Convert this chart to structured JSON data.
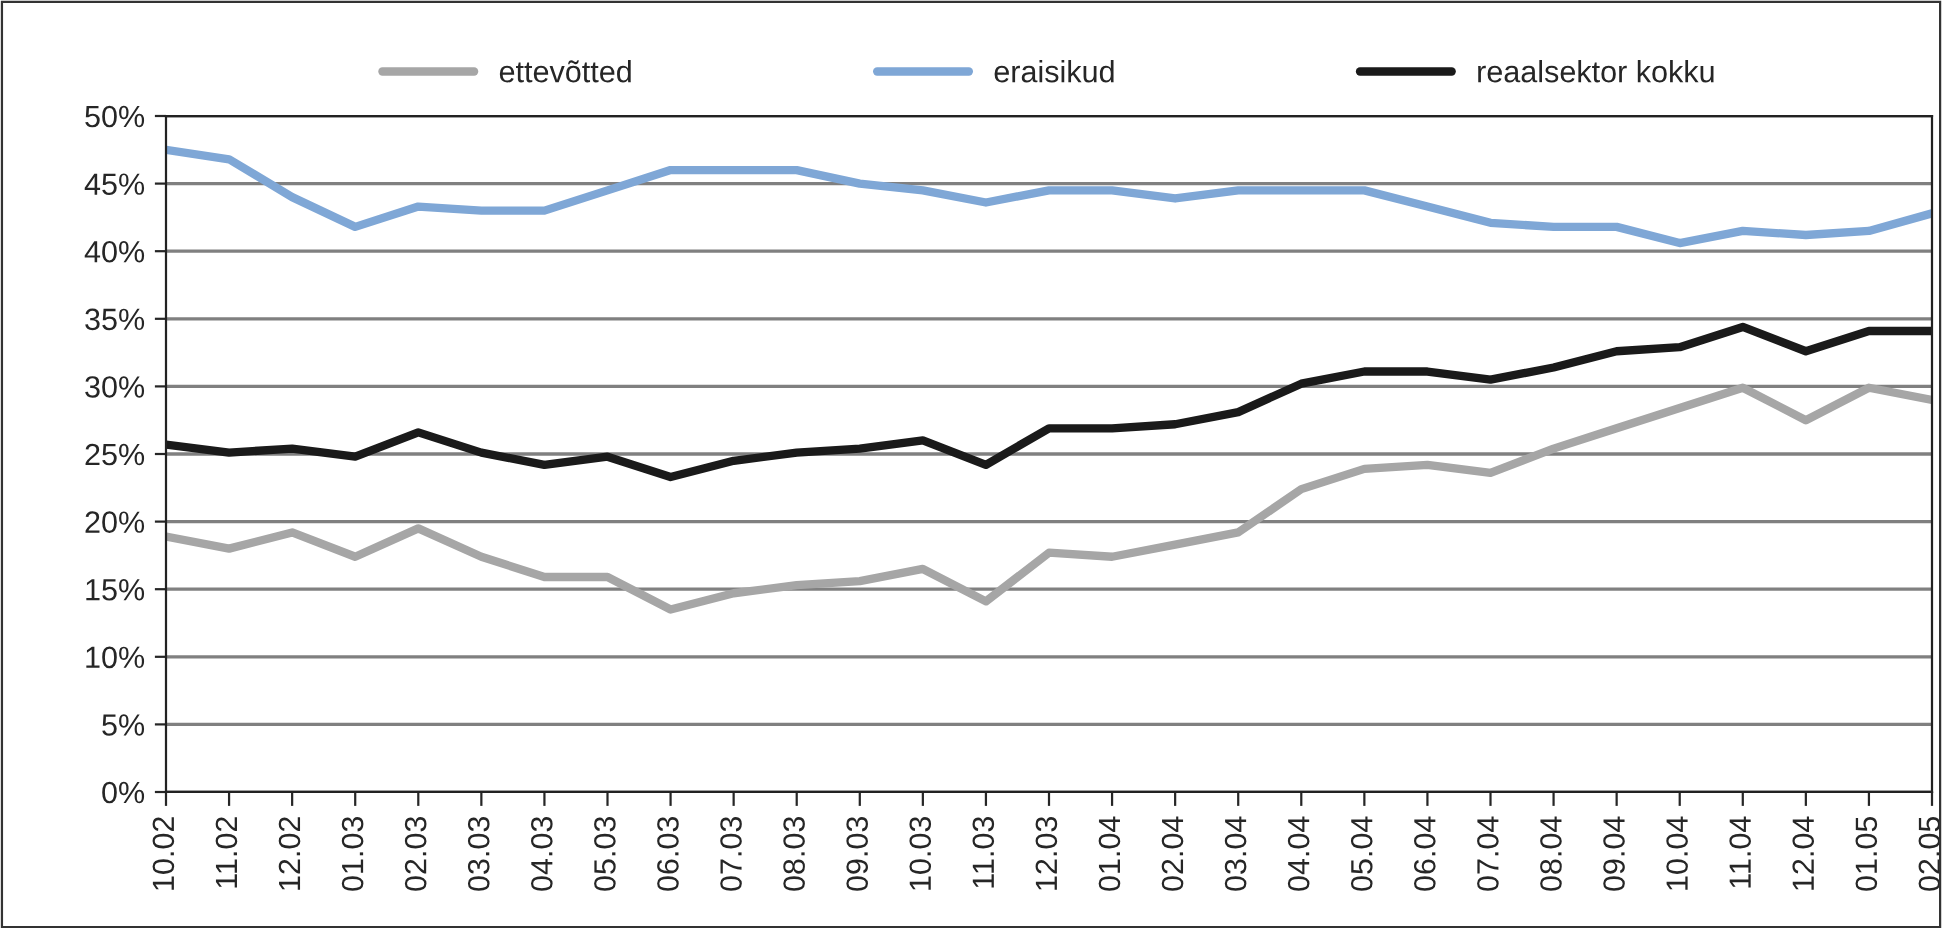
{
  "chart_data": {
    "type": "line",
    "categories": [
      "10.02",
      "11.02",
      "12.02",
      "01.03",
      "02.03",
      "03.03",
      "04.03",
      "05.03",
      "06.03",
      "07.03",
      "08.03",
      "09.03",
      "10.03",
      "11.03",
      "12.03",
      "01.04",
      "02.04",
      "03.04",
      "04.04",
      "05.04",
      "06.04",
      "07.04",
      "08.04",
      "09.04",
      "10.04",
      "11.04",
      "12.04",
      "01.05",
      "02.05"
    ],
    "series": [
      {
        "name": "ettevõtted",
        "color": "#a6a6a6",
        "values": [
          18.9,
          18,
          19.2,
          17.4,
          19.5,
          17.4,
          15.9,
          15.9,
          13.5,
          14.7,
          15.3,
          15.6,
          16.5,
          14.1,
          17.7,
          17.4,
          18.3,
          19.2,
          22.4,
          23.9,
          24.2,
          23.6,
          25.4,
          26.9,
          28.4,
          29.9,
          27.5,
          29.9,
          29
        ]
      },
      {
        "name": "eraisikud",
        "color": "#7fa7d6",
        "values": [
          47.5,
          46.8,
          44,
          41.8,
          43.3,
          43,
          43,
          44.5,
          46,
          46,
          46,
          45,
          44.5,
          43.6,
          44.5,
          44.5,
          43.9,
          44.5,
          44.5,
          44.5,
          43.3,
          42.1,
          41.8,
          41.8,
          40.6,
          41.5,
          41.2,
          41.5,
          42.8
        ]
      },
      {
        "name": "reaalsektor kokku",
        "color": "#1a1a1a",
        "values": [
          25.7,
          25.1,
          25.4,
          24.8,
          26.6,
          25.1,
          24.2,
          24.8,
          23.3,
          24.5,
          25.1,
          25.4,
          26,
          24.2,
          26.9,
          26.9,
          27.2,
          28.1,
          30.2,
          31.1,
          31.1,
          30.5,
          31.4,
          32.6,
          32.9,
          34.4,
          32.6,
          34.1,
          34.1
        ]
      }
    ],
    "ylim": [
      0,
      50
    ],
    "yticks": [
      {
        "value": 0,
        "label": "0%"
      },
      {
        "value": 5,
        "label": "5%"
      },
      {
        "value": 10,
        "label": "10%"
      },
      {
        "value": 15,
        "label": "15%"
      },
      {
        "value": 20,
        "label": "20%"
      },
      {
        "value": 25,
        "label": "25%"
      },
      {
        "value": 30,
        "label": "30%"
      },
      {
        "value": 35,
        "label": "35%"
      },
      {
        "value": 40,
        "label": "40%"
      },
      {
        "value": 45,
        "label": "45%"
      },
      {
        "value": 50,
        "label": "50%"
      }
    ],
    "grid": "y",
    "legend": "top",
    "marker": "none",
    "line_style": "solid"
  }
}
